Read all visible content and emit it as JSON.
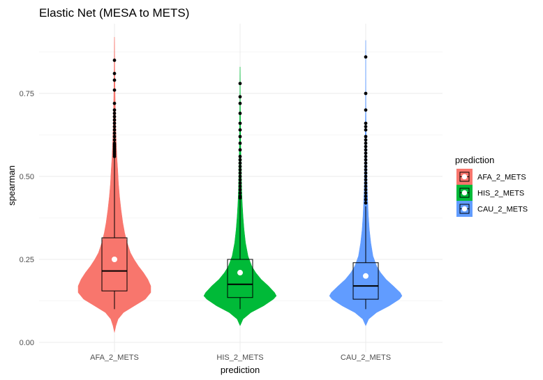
{
  "chart_data": {
    "type": "violin",
    "title": "Elastic Net (MESA to METS)",
    "xlabel": "prediction",
    "ylabel": "spearman",
    "ylim": [
      -0.03,
      0.94
    ],
    "yticks": [
      "0.00",
      "0.25",
      "0.50",
      "0.75"
    ],
    "ytick_values": [
      0.0,
      0.25,
      0.5,
      0.75
    ],
    "grid": true,
    "legend": {
      "title": "prediction",
      "position": "right",
      "entries": [
        "AFA_2_METS",
        "HIS_2_METS",
        "CAU_2_METS"
      ]
    },
    "categories": [
      "AFA_2_METS",
      "HIS_2_METS",
      "CAU_2_METS"
    ],
    "series": [
      {
        "name": "AFA_2_METS",
        "color": "#F8766D",
        "min": 0.03,
        "max": 0.92,
        "box": {
          "q1": 0.155,
          "median": 0.215,
          "q3": 0.315,
          "whisker_low": 0.1,
          "whisker_high": 0.555
        },
        "mean": 0.25,
        "outliers": [
          0.85,
          0.81,
          0.79,
          0.76,
          0.72,
          0.7,
          0.69,
          0.68,
          0.67,
          0.66,
          0.65,
          0.64,
          0.63,
          0.62,
          0.61,
          0.6,
          0.595,
          0.59,
          0.585,
          0.58,
          0.575,
          0.57,
          0.565,
          0.56
        ],
        "density": [
          [
            0.03,
            0.0
          ],
          [
            0.05,
            0.04
          ],
          [
            0.07,
            0.1
          ],
          [
            0.09,
            0.25
          ],
          [
            0.11,
            0.55
          ],
          [
            0.13,
            0.85
          ],
          [
            0.15,
            1.0
          ],
          [
            0.17,
            1.0
          ],
          [
            0.19,
            0.92
          ],
          [
            0.21,
            0.8
          ],
          [
            0.23,
            0.66
          ],
          [
            0.25,
            0.54
          ],
          [
            0.27,
            0.44
          ],
          [
            0.3,
            0.35
          ],
          [
            0.33,
            0.28
          ],
          [
            0.36,
            0.23
          ],
          [
            0.4,
            0.18
          ],
          [
            0.44,
            0.14
          ],
          [
            0.48,
            0.11
          ],
          [
            0.52,
            0.09
          ],
          [
            0.56,
            0.065
          ],
          [
            0.6,
            0.05
          ],
          [
            0.65,
            0.035
          ],
          [
            0.7,
            0.025
          ],
          [
            0.75,
            0.018
          ],
          [
            0.8,
            0.012
          ],
          [
            0.85,
            0.008
          ],
          [
            0.9,
            0.004
          ],
          [
            0.92,
            0.0
          ]
        ]
      },
      {
        "name": "HIS_2_METS",
        "color": "#00BA38",
        "min": 0.05,
        "max": 0.83,
        "box": {
          "q1": 0.135,
          "median": 0.175,
          "q3": 0.25,
          "whisker_low": 0.1,
          "whisker_high": 0.43
        },
        "mean": 0.21,
        "outliers": [
          0.78,
          0.74,
          0.72,
          0.69,
          0.66,
          0.64,
          0.62,
          0.6,
          0.58,
          0.56,
          0.55,
          0.54,
          0.53,
          0.52,
          0.51,
          0.5,
          0.49,
          0.48,
          0.47,
          0.46,
          0.45,
          0.44,
          0.435
        ],
        "density": [
          [
            0.05,
            0.0
          ],
          [
            0.07,
            0.08
          ],
          [
            0.09,
            0.3
          ],
          [
            0.11,
            0.65
          ],
          [
            0.13,
            0.92
          ],
          [
            0.14,
            1.0
          ],
          [
            0.15,
            0.95
          ],
          [
            0.17,
            0.78
          ],
          [
            0.19,
            0.58
          ],
          [
            0.21,
            0.43
          ],
          [
            0.23,
            0.32
          ],
          [
            0.26,
            0.22
          ],
          [
            0.3,
            0.15
          ],
          [
            0.34,
            0.11
          ],
          [
            0.38,
            0.08
          ],
          [
            0.42,
            0.06
          ],
          [
            0.46,
            0.045
          ],
          [
            0.5,
            0.035
          ],
          [
            0.55,
            0.025
          ],
          [
            0.6,
            0.018
          ],
          [
            0.65,
            0.013
          ],
          [
            0.7,
            0.009
          ],
          [
            0.75,
            0.006
          ],
          [
            0.8,
            0.003
          ],
          [
            0.83,
            0.0
          ]
        ]
      },
      {
        "name": "CAU_2_METS",
        "color": "#619CFF",
        "min": 0.05,
        "max": 0.91,
        "box": {
          "q1": 0.13,
          "median": 0.17,
          "q3": 0.24,
          "whisker_low": 0.1,
          "whisker_high": 0.41
        },
        "mean": 0.2,
        "outliers": [
          0.86,
          0.75,
          0.7,
          0.66,
          0.65,
          0.64,
          0.62,
          0.61,
          0.6,
          0.59,
          0.58,
          0.57,
          0.56,
          0.55,
          0.54,
          0.53,
          0.52,
          0.51,
          0.5,
          0.49,
          0.48,
          0.47,
          0.46,
          0.45,
          0.44,
          0.43,
          0.42
        ],
        "density": [
          [
            0.05,
            0.0
          ],
          [
            0.07,
            0.08
          ],
          [
            0.09,
            0.3
          ],
          [
            0.11,
            0.65
          ],
          [
            0.13,
            0.93
          ],
          [
            0.14,
            1.0
          ],
          [
            0.15,
            0.95
          ],
          [
            0.17,
            0.76
          ],
          [
            0.19,
            0.56
          ],
          [
            0.21,
            0.41
          ],
          [
            0.23,
            0.3
          ],
          [
            0.26,
            0.2
          ],
          [
            0.3,
            0.14
          ],
          [
            0.34,
            0.1
          ],
          [
            0.38,
            0.075
          ],
          [
            0.42,
            0.057
          ],
          [
            0.46,
            0.043
          ],
          [
            0.5,
            0.033
          ],
          [
            0.55,
            0.024
          ],
          [
            0.6,
            0.017
          ],
          [
            0.65,
            0.012
          ],
          [
            0.7,
            0.008
          ],
          [
            0.75,
            0.006
          ],
          [
            0.8,
            0.004
          ],
          [
            0.85,
            0.003
          ],
          [
            0.91,
            0.0
          ]
        ]
      }
    ]
  }
}
